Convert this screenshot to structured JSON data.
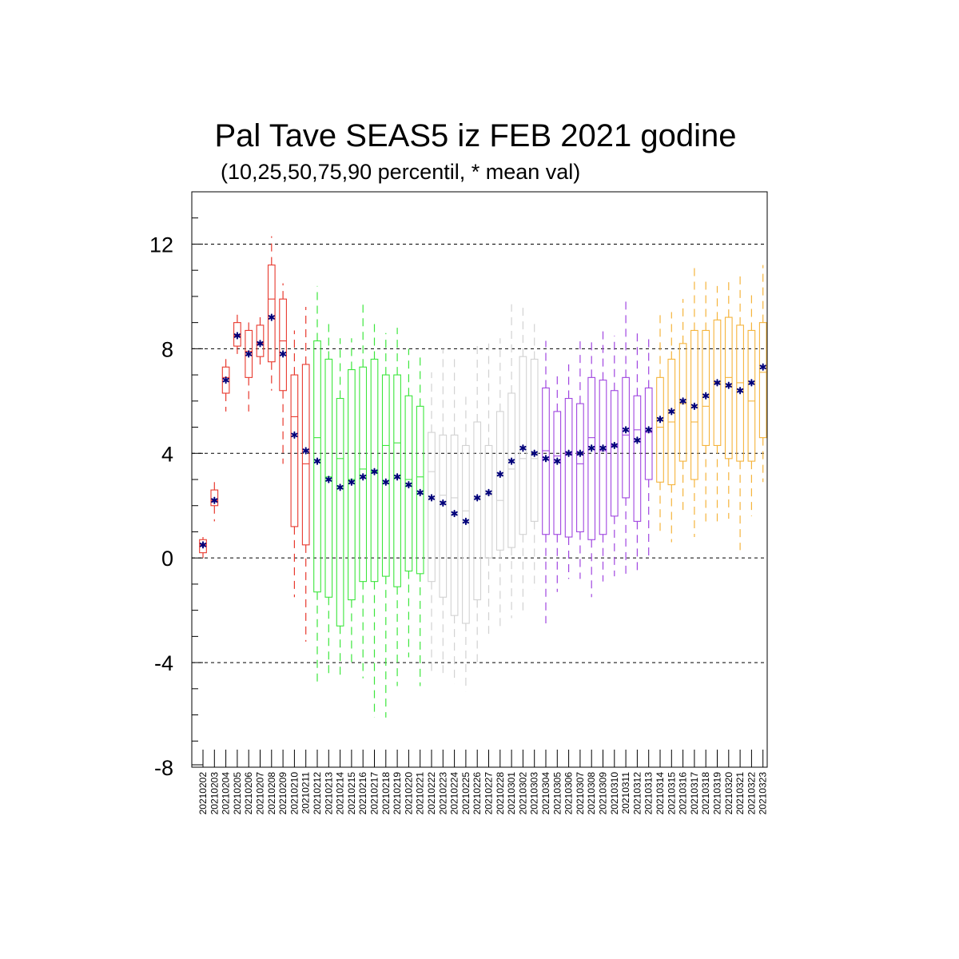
{
  "colors": {
    "red": "#e8392e",
    "green": "#3de63d",
    "gray": "#d2d2d2",
    "purple": "#a046e0",
    "orange": "#f5b43c",
    "mean": "#00007a",
    "grid": "#000000"
  },
  "chart_data": {
    "type": "boxplot",
    "title": "Pal Tave SEAS5 iz FEB 2021 godine",
    "subtitle": "(10,25,50,75,90 percentil, * mean val)",
    "ylim": [
      -8,
      14
    ],
    "yticks": [
      -8,
      -4,
      0,
      4,
      8,
      12
    ],
    "ytick_labels": [
      "-8",
      "-4",
      "0",
      "4",
      "8",
      "12"
    ],
    "grid": "horizontal dashed at -4, 0, 4, 8, 12",
    "categories": [
      "20210202",
      "20210203",
      "20210204",
      "20210205",
      "20210206",
      "20210207",
      "20210208",
      "20210209",
      "20210210",
      "20210211",
      "20210212",
      "20210213",
      "20210214",
      "20210215",
      "20210216",
      "20210217",
      "20210218",
      "20210219",
      "20210220",
      "20210221",
      "20210222",
      "20210223",
      "20210224",
      "20210225",
      "20210226",
      "20210227",
      "20210228",
      "20210301",
      "20210302",
      "20210303",
      "20210304",
      "20210305",
      "20210306",
      "20210307",
      "20210308",
      "20210309",
      "20210310",
      "20210311",
      "20210312",
      "20210313",
      "20210314",
      "20210315",
      "20210316",
      "20210317",
      "20210318",
      "20210319",
      "20210320",
      "20210321",
      "20210322",
      "20210323"
    ],
    "color_groups": [
      "red",
      "red",
      "red",
      "red",
      "red",
      "red",
      "red",
      "red",
      "red",
      "red",
      "green",
      "green",
      "green",
      "green",
      "green",
      "green",
      "green",
      "green",
      "green",
      "green",
      "gray",
      "gray",
      "gray",
      "gray",
      "gray",
      "gray",
      "gray",
      "gray",
      "gray",
      "gray",
      "purple",
      "purple",
      "purple",
      "purple",
      "purple",
      "purple",
      "purple",
      "purple",
      "purple",
      "purple",
      "orange",
      "orange",
      "orange",
      "orange",
      "orange",
      "orange",
      "orange",
      "orange",
      "orange",
      "orange"
    ],
    "p10": [
      0.0,
      1.4,
      5.6,
      7.8,
      5.6,
      7.3,
      6.4,
      3.6,
      -1.5,
      -3.2,
      -4.9,
      -4.6,
      -4.5,
      -4.0,
      -4.6,
      -6.1,
      -6.1,
      -4.9,
      -3.8,
      -4.9,
      -4.5,
      -4.4,
      -4.8,
      -5.1,
      -4.2,
      -3.0,
      -2.8,
      -2.3,
      -2.2,
      -1.2,
      -2.5,
      -1.3,
      -0.8,
      -0.8,
      -1.5,
      -0.9,
      -0.7,
      -0.6,
      -0.6,
      0.0,
      1.0,
      0.6,
      1.8,
      0.8,
      1.2,
      1.4,
      1.5,
      0.3,
      1.6,
      2.9
    ],
    "p25": [
      0.2,
      2.0,
      6.3,
      8.1,
      6.9,
      7.7,
      7.5,
      6.4,
      1.2,
      0.5,
      -1.3,
      -1.5,
      -2.6,
      -1.6,
      -0.9,
      -0.9,
      -0.7,
      -1.1,
      -0.5,
      -0.6,
      -0.9,
      -1.5,
      -2.2,
      -2.5,
      -1.6,
      0.0,
      0.3,
      0.4,
      0.9,
      1.4,
      0.9,
      0.9,
      0.8,
      1.0,
      0.7,
      0.9,
      1.6,
      2.3,
      1.4,
      3.0,
      2.9,
      2.8,
      3.7,
      3.0,
      4.3,
      4.3,
      3.8,
      3.7,
      3.7,
      4.6
    ],
    "p50": [
      0.5,
      2.2,
      6.9,
      8.5,
      7.9,
      8.2,
      9.9,
      8.3,
      5.4,
      3.6,
      4.6,
      3.1,
      3.8,
      3.0,
      3.4,
      3.3,
      4.3,
      4.4,
      3.0,
      3.1,
      3.3,
      2.4,
      2.3,
      1.8,
      2.3,
      2.4,
      2.2,
      3.4,
      3.8,
      3.8,
      4.1,
      3.9,
      4.0,
      3.6,
      4.6,
      4.1,
      4.3,
      4.7,
      4.9,
      4.8,
      5.0,
      5.2,
      5.9,
      5.2,
      5.8,
      6.7,
      6.9,
      6.7,
      6.0,
      7.1
    ],
    "p75": [
      0.7,
      2.6,
      7.3,
      9.0,
      8.7,
      8.9,
      11.2,
      9.9,
      7.0,
      7.4,
      8.3,
      7.6,
      6.1,
      7.2,
      7.3,
      7.6,
      7.0,
      7.0,
      6.2,
      5.8,
      4.8,
      4.7,
      4.7,
      4.3,
      5.2,
      4.3,
      5.6,
      6.3,
      7.7,
      7.6,
      6.5,
      5.6,
      6.1,
      5.9,
      6.9,
      6.8,
      6.4,
      6.9,
      6.2,
      6.5,
      6.9,
      7.6,
      8.2,
      8.7,
      8.7,
      9.1,
      9.2,
      8.9,
      8.7,
      9.0
    ],
    "p90": [
      0.8,
      2.9,
      7.8,
      9.3,
      9.1,
      9.4,
      12.3,
      10.5,
      8.7,
      9.6,
      10.4,
      9.0,
      8.4,
      8.4,
      9.8,
      9.0,
      8.6,
      8.8,
      8.0,
      7.8,
      7.1,
      8.0,
      7.7,
      6.2,
      8.2,
      8.2,
      8.4,
      9.7,
      9.7,
      9.1,
      8.3,
      7.0,
      7.4,
      8.3,
      8.3,
      8.7,
      8.5,
      9.8,
      8.7,
      8.5,
      9.4,
      9.4,
      9.9,
      11.2,
      10.7,
      10.4,
      10.6,
      10.9,
      10.2,
      11.2
    ],
    "mean": [
      0.5,
      2.2,
      6.8,
      8.5,
      7.8,
      8.2,
      9.2,
      7.8,
      4.7,
      4.1,
      3.7,
      3.0,
      2.7,
      2.9,
      3.1,
      3.3,
      2.9,
      3.1,
      2.8,
      2.5,
      2.3,
      2.1,
      1.7,
      1.4,
      2.3,
      2.5,
      3.2,
      3.7,
      4.2,
      4.0,
      3.8,
      3.7,
      4.0,
      4.0,
      4.2,
      4.2,
      4.3,
      4.9,
      4.5,
      4.9,
      5.3,
      5.6,
      6.0,
      5.8,
      6.2,
      6.7,
      6.6,
      6.4,
      6.7,
      7.3
    ]
  }
}
